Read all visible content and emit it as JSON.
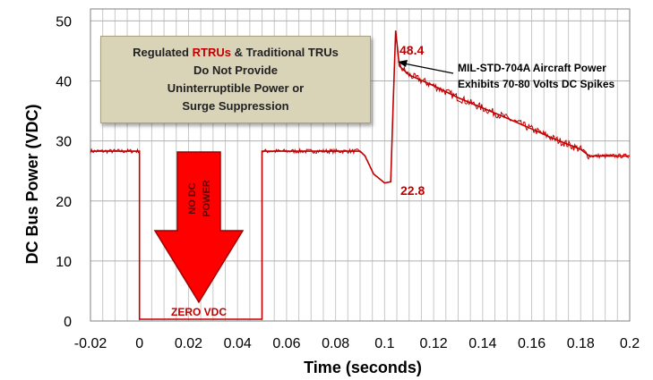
{
  "colors": {
    "trace": "#c00000",
    "arrow": "#ff0000",
    "arrow_stroke": "#a00000",
    "grid": "#c8c8c8",
    "callout_bg": "#d9d3b8"
  },
  "callout": {
    "line1_prefix": "Regulated ",
    "line1_highlight": "RTRUs",
    "line1_suffix": " & Traditional TRUs",
    "line2": "Do Not Provide",
    "line3": "Uninterruptible Power or",
    "line4": "Surge Suppression"
  },
  "arrow_label": {
    "line1": "NO DC",
    "line2": "POWER"
  },
  "chart_data": {
    "type": "line",
    "xlabel": "Time (seconds)",
    "ylabel": "DC Bus Power (VDC)",
    "xlim": [
      -0.02,
      0.2
    ],
    "ylim": [
      0,
      52
    ],
    "x_ticks": [
      "-0.02",
      "0",
      "0.02",
      "0.04",
      "0.06",
      "0.08",
      "0.1",
      "0.12",
      "0.14",
      "0.16",
      "0.18",
      "0.2"
    ],
    "x_tick_values": [
      -0.02,
      0,
      0.02,
      0.04,
      0.06,
      0.08,
      0.1,
      0.12,
      0.14,
      0.16,
      0.18,
      0.2
    ],
    "y_ticks": [
      "0",
      "10",
      "20",
      "30",
      "40",
      "50"
    ],
    "y_tick_values": [
      0,
      10,
      20,
      30,
      40,
      50
    ],
    "grid": true,
    "series": [
      {
        "x": [
          -0.02,
          0.0,
          0.0,
          0.05,
          0.05,
          0.09,
          0.092,
          0.0955,
          0.1,
          0.1025,
          0.1035,
          0.1045,
          0.106,
          0.11,
          0.12,
          0.13,
          0.14,
          0.15,
          0.16,
          0.17,
          0.18,
          0.1835,
          0.19,
          0.2
        ],
        "y": [
          28.3,
          28.3,
          0.3,
          0.3,
          28.3,
          28.3,
          27.5,
          24.5,
          23.0,
          23.2,
          36.0,
          48.4,
          42.5,
          41.0,
          39.2,
          37.2,
          35.5,
          33.8,
          32.0,
          30.2,
          28.6,
          27.5,
          27.5,
          27.5
        ]
      }
    ],
    "annotations": [
      {
        "text": "48.4",
        "x": 0.1045,
        "y": 48.4
      },
      {
        "text": "22.8",
        "x": 0.1,
        "y": 22.8
      },
      {
        "text": "ZERO VDC",
        "x": 0.025,
        "y": 0.3
      },
      {
        "text": "MIL-STD-704A Aircraft Power",
        "x": 0.138,
        "y": 44.5
      },
      {
        "text": "Exhibits 70-80 Volts DC Spikes",
        "x": 0.138,
        "y": 42.5
      }
    ]
  }
}
